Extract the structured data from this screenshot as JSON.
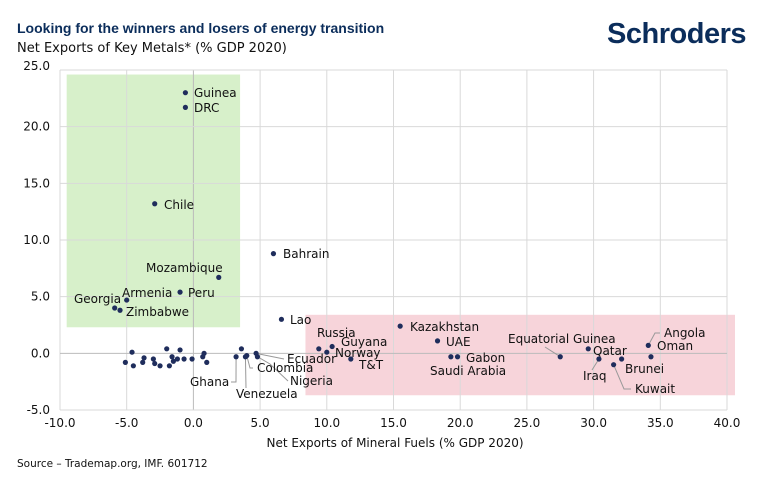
{
  "header": {
    "title": "Looking for the winners and losers of energy transition",
    "logo_text": "Schroders"
  },
  "footer": {
    "source": "Source – Trademap.org, IMF. 601712"
  },
  "colors": {
    "title": "#0b2d5b",
    "points": "#1f2d5c",
    "winners_box": "#d7f0ca",
    "losers_box": "#f7d4da",
    "grid": "#d9d9d9"
  },
  "chart_data": {
    "type": "scatter",
    "title": "Looking for the winners and losers of energy transition",
    "xlabel": "Net Exports of Mineral Fuels (% GDP 2020)",
    "ylabel": "Net Exports of Key Metals* (% GDP 2020)",
    "xlim": [
      -10,
      40
    ],
    "ylim": [
      -5,
      25
    ],
    "xticks": [
      "-10.0",
      "-5.0",
      "0.0",
      "5.0",
      "10.0",
      "15.0",
      "20.0",
      "25.0",
      "30.0",
      "35.0",
      "40.0"
    ],
    "yticks": [
      "25.0",
      "20.0",
      "15.0",
      "10.0",
      "5.0",
      "0.0",
      "-5.0"
    ],
    "grid": true,
    "highlight_regions": [
      {
        "x": [
          -9.5,
          3.5
        ],
        "y": [
          2.3,
          24.6
        ],
        "color": "#d7f0ca"
      },
      {
        "x": [
          8.4,
          40.6
        ],
        "y": [
          -3.7,
          3.4
        ],
        "color": "#f7d4da"
      }
    ],
    "labeled_points": [
      {
        "name": "Guinea",
        "x": -0.6,
        "y": 23.0
      },
      {
        "name": "DRC",
        "x": -0.6,
        "y": 21.7
      },
      {
        "name": "Chile",
        "x": -2.9,
        "y": 13.2
      },
      {
        "name": "Mozambique",
        "x": 1.9,
        "y": 6.7
      },
      {
        "name": "Peru",
        "x": -1.0,
        "y": 5.4
      },
      {
        "name": "Armenia",
        "x": -5.0,
        "y": 4.7
      },
      {
        "name": "Georgia",
        "x": -5.9,
        "y": 4.0
      },
      {
        "name": "Zimbabwe",
        "x": -5.5,
        "y": 3.8
      },
      {
        "name": "Bahrain",
        "x": 6.0,
        "y": 8.8
      },
      {
        "name": "Lao",
        "x": 6.6,
        "y": 3.0
      },
      {
        "name": "Russia",
        "x": 9.4,
        "y": 0.4
      },
      {
        "name": "Guyana",
        "x": 10.4,
        "y": 0.6
      },
      {
        "name": "Norway",
        "x": 10.0,
        "y": 0.1
      },
      {
        "name": "Ecuador",
        "x": 4.7,
        "y": 0.0
      },
      {
        "name": "Colombia",
        "x": 4.0,
        "y": -0.2
      },
      {
        "name": "Nigeria",
        "x": 4.8,
        "y": -0.3
      },
      {
        "name": "Ghana",
        "x": 3.2,
        "y": -0.3
      },
      {
        "name": "Venezuela",
        "x": 3.9,
        "y": -0.3
      },
      {
        "name": "T&T",
        "x": 11.8,
        "y": -0.5
      },
      {
        "name": "Kazakhstan",
        "x": 15.5,
        "y": 2.4
      },
      {
        "name": "UAE",
        "x": 18.3,
        "y": 1.1
      },
      {
        "name": "Saudi Arabia",
        "x": 19.3,
        "y": -0.3
      },
      {
        "name": "Gabon",
        "x": 19.8,
        "y": -0.3
      },
      {
        "name": "Equatorial Guinea",
        "x": 27.5,
        "y": -0.3
      },
      {
        "name": "Qatar",
        "x": 29.6,
        "y": 0.4
      },
      {
        "name": "Iraq",
        "x": 30.4,
        "y": -0.5
      },
      {
        "name": "Brunei",
        "x": 32.1,
        "y": -0.5
      },
      {
        "name": "Kuwait",
        "x": 31.5,
        "y": -1.0
      },
      {
        "name": "Oman",
        "x": 34.3,
        "y": -0.3
      },
      {
        "name": "Angola",
        "x": 34.1,
        "y": 0.7
      }
    ],
    "unlabeled_points": [
      [
        -5.1,
        -0.8
      ],
      [
        -4.6,
        0.1
      ],
      [
        -4.5,
        -1.1
      ],
      [
        -3.8,
        -0.8
      ],
      [
        -3.7,
        -0.4
      ],
      [
        -3.0,
        -0.5
      ],
      [
        -2.9,
        -0.9
      ],
      [
        -2.5,
        -1.1
      ],
      [
        -2.0,
        0.4
      ],
      [
        -1.8,
        -1.1
      ],
      [
        -1.6,
        -0.3
      ],
      [
        -1.5,
        -0.7
      ],
      [
        -1.2,
        -0.5
      ],
      [
        -1.0,
        0.3
      ],
      [
        -0.7,
        -0.5
      ],
      [
        -0.1,
        -0.5
      ],
      [
        0.7,
        -0.3
      ],
      [
        0.8,
        0.0
      ],
      [
        1.0,
        -0.8
      ],
      [
        3.6,
        0.4
      ]
    ]
  }
}
